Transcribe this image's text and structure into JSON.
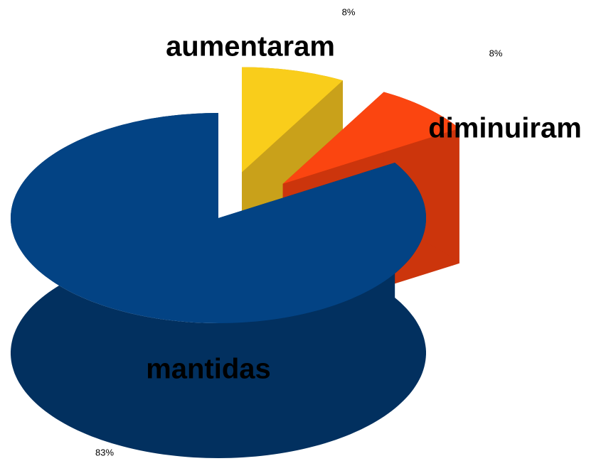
{
  "chart_data": {
    "type": "pie",
    "categories": [
      "aumentaram",
      "diminuiram",
      "mantidas"
    ],
    "values": [
      8,
      8,
      83
    ],
    "value_labels": [
      "8%",
      "8%",
      "83%"
    ],
    "colors": [
      "#f9cd1b",
      "#fb4510",
      "#034384"
    ],
    "side_colors": [
      "#c9a11a",
      "#cc350c",
      "#02305f"
    ]
  }
}
